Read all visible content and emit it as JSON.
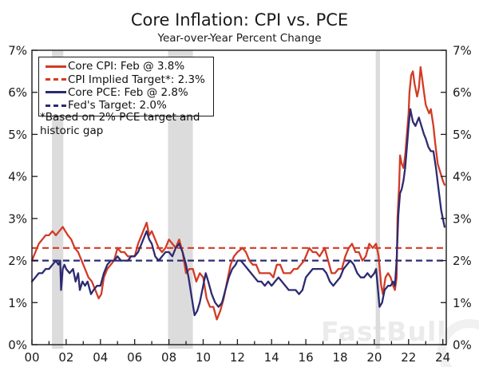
{
  "header": {
    "title": "Core Inflation: CPI vs. PCE",
    "subtitle": "Year-over-Year Percent Change"
  },
  "legend": {
    "items": [
      {
        "label": "Core CPI: Feb @ 3.8%",
        "color": "#d23b26",
        "dash": false
      },
      {
        "label": "CPI Implied Target*: 2.3%",
        "color": "#d23b26",
        "dash": true
      },
      {
        "label": "Core PCE: Feb @ 2.8%",
        "color": "#2d2a71",
        "dash": false
      },
      {
        "label": "Fed's Target: 2.0%",
        "color": "#2d2a71",
        "dash": true
      }
    ]
  },
  "footnote": {
    "line1": "*Based on 2% PCE target and",
    "line2": "historic gap"
  },
  "watermark": "FastBull",
  "colors": {
    "cpi_red": "#d23b26",
    "pce_navy": "#2d2a71",
    "recession_band": "#dcdcdc",
    "axis": "#1a1a1a",
    "watermark_gray": "#ebebeb"
  },
  "chart_data": {
    "type": "line",
    "title": "Core Inflation: CPI vs. PCE",
    "subtitle": "Year-over-Year Percent Change",
    "xlabel": "",
    "ylabel": "Year-over-Year Percent Change",
    "x_range": [
      2000,
      2024.2
    ],
    "y_range": [
      0,
      7
    ],
    "grid": false,
    "legend_position": "top-left",
    "y_tick_labels": [
      "0%",
      "1%",
      "2%",
      "3%",
      "4%",
      "5%",
      "6%",
      "7%"
    ],
    "x_ticks": [
      [
        2000,
        "00"
      ],
      [
        2002,
        "02"
      ],
      [
        2004,
        "04"
      ],
      [
        2006,
        "06"
      ],
      [
        2008,
        "08"
      ],
      [
        2010,
        "10"
      ],
      [
        2012,
        "12"
      ],
      [
        2014,
        "14"
      ],
      [
        2016,
        "16"
      ],
      [
        2018,
        "18"
      ],
      [
        2020,
        "20"
      ],
      [
        2022,
        "22"
      ],
      [
        2024,
        "24"
      ]
    ],
    "band_color": "#dcdcdc",
    "recession_bands": [
      [
        2001.17,
        2001.83
      ],
      [
        2007.95,
        2009.4
      ],
      [
        2020.08,
        2020.33
      ]
    ],
    "target_lines": [
      {
        "name": "CPI Implied Target",
        "value": 2.3,
        "color": "#d23b26"
      },
      {
        "name": "Fed's Target",
        "value": 2.0,
        "color": "#2d2a71"
      }
    ],
    "latest_readings": {
      "core_cpi_feb": 3.8,
      "core_pce_feb": 2.8,
      "cpi_implied_target": 2.3,
      "fed_target": 2.0
    },
    "series": [
      {
        "name": "Core CPI",
        "color": "#d23b26",
        "points": [
          [
            2000.0,
            2.0
          ],
          [
            2000.2,
            2.2
          ],
          [
            2000.4,
            2.4
          ],
          [
            2000.6,
            2.5
          ],
          [
            2000.8,
            2.6
          ],
          [
            2001.0,
            2.6
          ],
          [
            2001.2,
            2.7
          ],
          [
            2001.4,
            2.6
          ],
          [
            2001.6,
            2.7
          ],
          [
            2001.8,
            2.8
          ],
          [
            2001.95,
            2.7
          ],
          [
            2002.1,
            2.6
          ],
          [
            2002.3,
            2.5
          ],
          [
            2002.5,
            2.3
          ],
          [
            2002.7,
            2.2
          ],
          [
            2002.9,
            2.0
          ],
          [
            2003.1,
            1.8
          ],
          [
            2003.3,
            1.6
          ],
          [
            2003.5,
            1.5
          ],
          [
            2003.7,
            1.3
          ],
          [
            2003.9,
            1.1
          ],
          [
            2004.05,
            1.2
          ],
          [
            2004.2,
            1.6
          ],
          [
            2004.4,
            1.8
          ],
          [
            2004.6,
            1.9
          ],
          [
            2004.8,
            2.0
          ],
          [
            2005.0,
            2.3
          ],
          [
            2005.2,
            2.2
          ],
          [
            2005.4,
            2.2
          ],
          [
            2005.6,
            2.1
          ],
          [
            2005.8,
            2.1
          ],
          [
            2006.0,
            2.1
          ],
          [
            2006.2,
            2.4
          ],
          [
            2006.4,
            2.6
          ],
          [
            2006.6,
            2.8
          ],
          [
            2006.7,
            2.9
          ],
          [
            2006.85,
            2.6
          ],
          [
            2007.0,
            2.7
          ],
          [
            2007.2,
            2.5
          ],
          [
            2007.4,
            2.3
          ],
          [
            2007.6,
            2.2
          ],
          [
            2007.8,
            2.3
          ],
          [
            2008.0,
            2.5
          ],
          [
            2008.2,
            2.4
          ],
          [
            2008.4,
            2.3
          ],
          [
            2008.6,
            2.5
          ],
          [
            2008.8,
            2.2
          ],
          [
            2009.0,
            1.7
          ],
          [
            2009.2,
            1.8
          ],
          [
            2009.4,
            1.8
          ],
          [
            2009.6,
            1.5
          ],
          [
            2009.8,
            1.7
          ],
          [
            2010.0,
            1.6
          ],
          [
            2010.2,
            1.1
          ],
          [
            2010.4,
            0.9
          ],
          [
            2010.6,
            0.9
          ],
          [
            2010.8,
            0.6
          ],
          [
            2011.0,
            0.8
          ],
          [
            2011.2,
            1.1
          ],
          [
            2011.4,
            1.5
          ],
          [
            2011.6,
            1.9
          ],
          [
            2011.8,
            2.1
          ],
          [
            2012.0,
            2.2
          ],
          [
            2012.3,
            2.3
          ],
          [
            2012.5,
            2.2
          ],
          [
            2012.7,
            2.0
          ],
          [
            2012.9,
            1.9
          ],
          [
            2013.1,
            1.9
          ],
          [
            2013.3,
            1.7
          ],
          [
            2013.5,
            1.7
          ],
          [
            2013.7,
            1.7
          ],
          [
            2013.9,
            1.7
          ],
          [
            2014.1,
            1.6
          ],
          [
            2014.3,
            1.9
          ],
          [
            2014.5,
            1.9
          ],
          [
            2014.7,
            1.7
          ],
          [
            2014.9,
            1.7
          ],
          [
            2015.1,
            1.7
          ],
          [
            2015.3,
            1.8
          ],
          [
            2015.5,
            1.8
          ],
          [
            2015.7,
            1.9
          ],
          [
            2015.9,
            2.0
          ],
          [
            2016.1,
            2.2
          ],
          [
            2016.2,
            2.3
          ],
          [
            2016.4,
            2.2
          ],
          [
            2016.6,
            2.2
          ],
          [
            2016.8,
            2.1
          ],
          [
            2016.95,
            2.2
          ],
          [
            2017.1,
            2.3
          ],
          [
            2017.3,
            2.0
          ],
          [
            2017.5,
            1.7
          ],
          [
            2017.7,
            1.7
          ],
          [
            2017.9,
            1.8
          ],
          [
            2018.1,
            1.8
          ],
          [
            2018.3,
            2.1
          ],
          [
            2018.5,
            2.3
          ],
          [
            2018.7,
            2.4
          ],
          [
            2018.9,
            2.2
          ],
          [
            2019.1,
            2.2
          ],
          [
            2019.3,
            2.0
          ],
          [
            2019.5,
            2.1
          ],
          [
            2019.7,
            2.4
          ],
          [
            2019.9,
            2.3
          ],
          [
            2020.1,
            2.4
          ],
          [
            2020.25,
            2.1
          ],
          [
            2020.4,
            1.4
          ],
          [
            2020.5,
            1.2
          ],
          [
            2020.65,
            1.6
          ],
          [
            2020.8,
            1.7
          ],
          [
            2020.95,
            1.6
          ],
          [
            2021.1,
            1.4
          ],
          [
            2021.2,
            1.3
          ],
          [
            2021.3,
            1.6
          ],
          [
            2021.35,
            3.0
          ],
          [
            2021.45,
            3.8
          ],
          [
            2021.5,
            4.5
          ],
          [
            2021.6,
            4.3
          ],
          [
            2021.7,
            4.2
          ],
          [
            2021.8,
            4.5
          ],
          [
            2021.9,
            5.0
          ],
          [
            2022.0,
            5.5
          ],
          [
            2022.05,
            6.0
          ],
          [
            2022.15,
            6.4
          ],
          [
            2022.25,
            6.5
          ],
          [
            2022.35,
            6.2
          ],
          [
            2022.5,
            5.9
          ],
          [
            2022.6,
            6.1
          ],
          [
            2022.7,
            6.6
          ],
          [
            2022.8,
            6.3
          ],
          [
            2022.9,
            6.0
          ],
          [
            2023.0,
            5.7
          ],
          [
            2023.1,
            5.6
          ],
          [
            2023.2,
            5.5
          ],
          [
            2023.3,
            5.6
          ],
          [
            2023.45,
            5.2
          ],
          [
            2023.55,
            4.8
          ],
          [
            2023.7,
            4.3
          ],
          [
            2023.85,
            4.1
          ],
          [
            2024.0,
            3.9
          ],
          [
            2024.1,
            3.8
          ]
        ]
      },
      {
        "name": "Core PCE",
        "color": "#2d2a71",
        "points": [
          [
            2000.0,
            1.5
          ],
          [
            2000.2,
            1.6
          ],
          [
            2000.4,
            1.7
          ],
          [
            2000.6,
            1.7
          ],
          [
            2000.8,
            1.8
          ],
          [
            2001.0,
            1.8
          ],
          [
            2001.2,
            1.9
          ],
          [
            2001.4,
            2.0
          ],
          [
            2001.55,
            1.9
          ],
          [
            2001.65,
            2.0
          ],
          [
            2001.7,
            1.3
          ],
          [
            2001.8,
            1.8
          ],
          [
            2001.9,
            1.9
          ],
          [
            2002.0,
            1.8
          ],
          [
            2002.2,
            1.7
          ],
          [
            2002.4,
            1.8
          ],
          [
            2002.55,
            1.5
          ],
          [
            2002.7,
            1.7
          ],
          [
            2002.8,
            1.3
          ],
          [
            2002.95,
            1.5
          ],
          [
            2003.1,
            1.4
          ],
          [
            2003.25,
            1.5
          ],
          [
            2003.45,
            1.2
          ],
          [
            2003.6,
            1.3
          ],
          [
            2003.8,
            1.4
          ],
          [
            2004.0,
            1.4
          ],
          [
            2004.2,
            1.7
          ],
          [
            2004.4,
            1.9
          ],
          [
            2004.6,
            2.0
          ],
          [
            2004.8,
            2.0
          ],
          [
            2005.0,
            2.1
          ],
          [
            2005.2,
            2.0
          ],
          [
            2005.4,
            2.0
          ],
          [
            2005.6,
            2.0
          ],
          [
            2005.8,
            2.1
          ],
          [
            2006.0,
            2.1
          ],
          [
            2006.2,
            2.2
          ],
          [
            2006.4,
            2.4
          ],
          [
            2006.6,
            2.6
          ],
          [
            2006.7,
            2.7
          ],
          [
            2006.85,
            2.5
          ],
          [
            2007.0,
            2.4
          ],
          [
            2007.2,
            2.1
          ],
          [
            2007.4,
            2.0
          ],
          [
            2007.6,
            2.1
          ],
          [
            2007.8,
            2.2
          ],
          [
            2008.0,
            2.2
          ],
          [
            2008.2,
            2.1
          ],
          [
            2008.4,
            2.3
          ],
          [
            2008.6,
            2.4
          ],
          [
            2008.8,
            2.2
          ],
          [
            2009.0,
            1.9
          ],
          [
            2009.15,
            1.6
          ],
          [
            2009.3,
            1.2
          ],
          [
            2009.5,
            0.7
          ],
          [
            2009.65,
            0.8
          ],
          [
            2009.8,
            1.0
          ],
          [
            2010.0,
            1.4
          ],
          [
            2010.15,
            1.7
          ],
          [
            2010.3,
            1.5
          ],
          [
            2010.5,
            1.2
          ],
          [
            2010.7,
            1.0
          ],
          [
            2010.9,
            0.9
          ],
          [
            2011.1,
            1.0
          ],
          [
            2011.3,
            1.3
          ],
          [
            2011.5,
            1.6
          ],
          [
            2011.7,
            1.8
          ],
          [
            2011.9,
            1.9
          ],
          [
            2012.0,
            2.0
          ],
          [
            2012.2,
            2.0
          ],
          [
            2012.4,
            1.9
          ],
          [
            2012.6,
            1.8
          ],
          [
            2012.8,
            1.7
          ],
          [
            2013.0,
            1.6
          ],
          [
            2013.2,
            1.5
          ],
          [
            2013.4,
            1.5
          ],
          [
            2013.6,
            1.4
          ],
          [
            2013.8,
            1.5
          ],
          [
            2014.0,
            1.4
          ],
          [
            2014.2,
            1.5
          ],
          [
            2014.4,
            1.6
          ],
          [
            2014.6,
            1.5
          ],
          [
            2014.8,
            1.4
          ],
          [
            2015.0,
            1.3
          ],
          [
            2015.2,
            1.3
          ],
          [
            2015.4,
            1.3
          ],
          [
            2015.6,
            1.2
          ],
          [
            2015.8,
            1.3
          ],
          [
            2016.0,
            1.6
          ],
          [
            2016.2,
            1.7
          ],
          [
            2016.4,
            1.8
          ],
          [
            2016.6,
            1.8
          ],
          [
            2016.8,
            1.8
          ],
          [
            2017.0,
            1.8
          ],
          [
            2017.2,
            1.7
          ],
          [
            2017.4,
            1.5
          ],
          [
            2017.6,
            1.4
          ],
          [
            2017.8,
            1.5
          ],
          [
            2018.0,
            1.6
          ],
          [
            2018.2,
            1.8
          ],
          [
            2018.4,
            1.9
          ],
          [
            2018.6,
            2.0
          ],
          [
            2018.8,
            1.9
          ],
          [
            2019.0,
            1.7
          ],
          [
            2019.2,
            1.6
          ],
          [
            2019.4,
            1.6
          ],
          [
            2019.6,
            1.7
          ],
          [
            2019.8,
            1.6
          ],
          [
            2020.0,
            1.7
          ],
          [
            2020.1,
            1.8
          ],
          [
            2020.3,
            0.9
          ],
          [
            2020.45,
            1.0
          ],
          [
            2020.6,
            1.3
          ],
          [
            2020.8,
            1.4
          ],
          [
            2020.95,
            1.4
          ],
          [
            2021.1,
            1.5
          ],
          [
            2021.2,
            1.4
          ],
          [
            2021.3,
            2.0
          ],
          [
            2021.4,
            3.1
          ],
          [
            2021.5,
            3.6
          ],
          [
            2021.6,
            3.7
          ],
          [
            2021.7,
            3.9
          ],
          [
            2021.8,
            4.2
          ],
          [
            2021.9,
            4.7
          ],
          [
            2022.0,
            5.2
          ],
          [
            2022.1,
            5.6
          ],
          [
            2022.25,
            5.3
          ],
          [
            2022.4,
            5.2
          ],
          [
            2022.6,
            5.4
          ],
          [
            2022.75,
            5.2
          ],
          [
            2022.9,
            5.0
          ],
          [
            2023.0,
            4.9
          ],
          [
            2023.15,
            4.7
          ],
          [
            2023.3,
            4.6
          ],
          [
            2023.45,
            4.6
          ],
          [
            2023.6,
            4.2
          ],
          [
            2023.75,
            3.7
          ],
          [
            2023.9,
            3.2
          ],
          [
            2024.0,
            3.0
          ],
          [
            2024.1,
            2.8
          ]
        ]
      }
    ]
  }
}
